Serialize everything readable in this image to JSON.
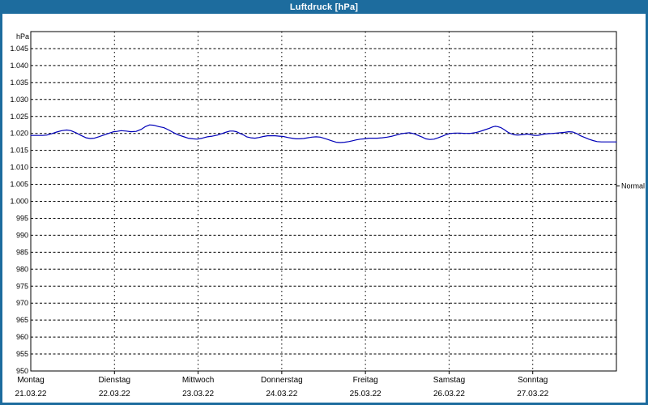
{
  "window": {
    "title": "Luftdruck [hPa]"
  },
  "colors": {
    "frame": "#1d6c9e",
    "title_text": "#ffffff",
    "plot_bg": "#ffffff",
    "grid": "#000000",
    "axis_text": "#000000",
    "line": "#0000b8"
  },
  "chart_data": {
    "type": "line",
    "title": "Luftdruck [hPa]",
    "unit_label": "hPa",
    "grid": "on",
    "ylim": [
      950,
      1050
    ],
    "xlim_days": [
      0,
      7
    ],
    "y_ticks": [
      {
        "value": 1045,
        "label": "1.045"
      },
      {
        "value": 1040,
        "label": "1.040"
      },
      {
        "value": 1035,
        "label": "1.035"
      },
      {
        "value": 1030,
        "label": "1.030"
      },
      {
        "value": 1025,
        "label": "1.025"
      },
      {
        "value": 1020,
        "label": "1.020"
      },
      {
        "value": 1015,
        "label": "1.015"
      },
      {
        "value": 1010,
        "label": "1.010"
      },
      {
        "value": 1005,
        "label": "1.005"
      },
      {
        "value": 1000,
        "label": "1.000"
      },
      {
        "value": 995,
        "label": "995"
      },
      {
        "value": 990,
        "label": "990"
      },
      {
        "value": 985,
        "label": "985"
      },
      {
        "value": 980,
        "label": "980"
      },
      {
        "value": 975,
        "label": "975"
      },
      {
        "value": 970,
        "label": "970"
      },
      {
        "value": 965,
        "label": "965"
      },
      {
        "value": 960,
        "label": "960"
      },
      {
        "value": 955,
        "label": "955"
      },
      {
        "value": 950,
        "label": "950"
      }
    ],
    "days": [
      {
        "name": "Montag",
        "date": "21.03.22"
      },
      {
        "name": "Dienstag",
        "date": "22.03.22"
      },
      {
        "name": "Mittwoch",
        "date": "23.03.22"
      },
      {
        "name": "Donnerstag",
        "date": "24.03.22"
      },
      {
        "name": "Freitag",
        "date": "25.03.22"
      },
      {
        "name": "Samstag",
        "date": "26.03.22"
      },
      {
        "name": "Sonntag",
        "date": "27.03.22"
      }
    ],
    "normal_marker": {
      "label": "Normal",
      "value": 1004.5
    },
    "series": [
      {
        "name": "Luftdruck",
        "color": "#0000b8",
        "points": [
          [
            0.0,
            1019.4
          ],
          [
            0.07,
            1019.4
          ],
          [
            0.14,
            1019.4
          ],
          [
            0.19,
            1019.5
          ],
          [
            0.25,
            1019.9
          ],
          [
            0.31,
            1020.4
          ],
          [
            0.37,
            1020.8
          ],
          [
            0.43,
            1021.0
          ],
          [
            0.48,
            1020.8
          ],
          [
            0.54,
            1020.2
          ],
          [
            0.6,
            1019.4
          ],
          [
            0.66,
            1018.7
          ],
          [
            0.71,
            1018.5
          ],
          [
            0.76,
            1018.6
          ],
          [
            0.81,
            1019.0
          ],
          [
            0.87,
            1019.5
          ],
          [
            0.93,
            1020.0
          ],
          [
            0.99,
            1020.5
          ],
          [
            1.03,
            1020.6
          ],
          [
            1.08,
            1020.8
          ],
          [
            1.14,
            1020.7
          ],
          [
            1.2,
            1020.5
          ],
          [
            1.26,
            1020.6
          ],
          [
            1.32,
            1021.2
          ],
          [
            1.37,
            1022.0
          ],
          [
            1.42,
            1022.5
          ],
          [
            1.47,
            1022.4
          ],
          [
            1.53,
            1022.0
          ],
          [
            1.59,
            1021.7
          ],
          [
            1.65,
            1021.0
          ],
          [
            1.7,
            1020.3
          ],
          [
            1.76,
            1019.6
          ],
          [
            1.82,
            1019.1
          ],
          [
            1.88,
            1018.6
          ],
          [
            1.94,
            1018.4
          ],
          [
            1.99,
            1018.3
          ],
          [
            2.05,
            1018.6
          ],
          [
            2.11,
            1019.0
          ],
          [
            2.17,
            1019.2
          ],
          [
            2.23,
            1019.5
          ],
          [
            2.28,
            1019.9
          ],
          [
            2.34,
            1020.4
          ],
          [
            2.38,
            1020.7
          ],
          [
            2.42,
            1020.7
          ],
          [
            2.46,
            1020.5
          ],
          [
            2.5,
            1020.0
          ],
          [
            2.54,
            1019.6
          ],
          [
            2.58,
            1019.0
          ],
          [
            2.63,
            1018.7
          ],
          [
            2.68,
            1018.6
          ],
          [
            2.73,
            1018.8
          ],
          [
            2.78,
            1019.1
          ],
          [
            2.83,
            1019.3
          ],
          [
            2.88,
            1019.3
          ],
          [
            2.92,
            1019.3
          ],
          [
            2.97,
            1019.2
          ],
          [
            3.02,
            1019.1
          ],
          [
            3.07,
            1018.8
          ],
          [
            3.12,
            1018.6
          ],
          [
            3.17,
            1018.4
          ],
          [
            3.21,
            1018.4
          ],
          [
            3.26,
            1018.5
          ],
          [
            3.31,
            1018.7
          ],
          [
            3.36,
            1018.9
          ],
          [
            3.41,
            1019.0
          ],
          [
            3.46,
            1018.9
          ],
          [
            3.5,
            1018.6
          ],
          [
            3.55,
            1018.2
          ],
          [
            3.6,
            1017.8
          ],
          [
            3.65,
            1017.4
          ],
          [
            3.7,
            1017.3
          ],
          [
            3.75,
            1017.4
          ],
          [
            3.8,
            1017.6
          ],
          [
            3.84,
            1017.8
          ],
          [
            3.89,
            1018.1
          ],
          [
            3.94,
            1018.3
          ],
          [
            3.99,
            1018.4
          ],
          [
            4.04,
            1018.6
          ],
          [
            4.09,
            1018.6
          ],
          [
            4.14,
            1018.6
          ],
          [
            4.2,
            1018.7
          ],
          [
            4.26,
            1018.9
          ],
          [
            4.32,
            1019.2
          ],
          [
            4.38,
            1019.6
          ],
          [
            4.43,
            1019.9
          ],
          [
            4.48,
            1020.1
          ],
          [
            4.53,
            1020.2
          ],
          [
            4.58,
            1019.9
          ],
          [
            4.63,
            1019.4
          ],
          [
            4.68,
            1018.9
          ],
          [
            4.72,
            1018.4
          ],
          [
            4.77,
            1018.2
          ],
          [
            4.82,
            1018.3
          ],
          [
            4.87,
            1018.7
          ],
          [
            4.92,
            1019.2
          ],
          [
            4.97,
            1019.7
          ],
          [
            5.02,
            1020.0
          ],
          [
            5.07,
            1020.1
          ],
          [
            5.13,
            1020.1
          ],
          [
            5.19,
            1020.0
          ],
          [
            5.25,
            1020.0
          ],
          [
            5.31,
            1020.2
          ],
          [
            5.36,
            1020.5
          ],
          [
            5.42,
            1021.0
          ],
          [
            5.48,
            1021.5
          ],
          [
            5.52,
            1021.9
          ],
          [
            5.55,
            1022.1
          ],
          [
            5.58,
            1022.0
          ],
          [
            5.62,
            1021.7
          ],
          [
            5.66,
            1021.1
          ],
          [
            5.7,
            1020.4
          ],
          [
            5.74,
            1019.9
          ],
          [
            5.78,
            1019.6
          ],
          [
            5.82,
            1019.5
          ],
          [
            5.86,
            1019.6
          ],
          [
            5.9,
            1019.7
          ],
          [
            5.94,
            1019.8
          ],
          [
            5.98,
            1019.6
          ],
          [
            6.02,
            1019.4
          ],
          [
            6.06,
            1019.4
          ],
          [
            6.1,
            1019.6
          ],
          [
            6.14,
            1019.8
          ],
          [
            6.18,
            1019.9
          ],
          [
            6.24,
            1020.0
          ],
          [
            6.28,
            1020.1
          ],
          [
            6.33,
            1020.2
          ],
          [
            6.38,
            1020.3
          ],
          [
            6.43,
            1020.5
          ],
          [
            6.48,
            1020.4
          ],
          [
            6.53,
            1019.9
          ],
          [
            6.57,
            1019.3
          ],
          [
            6.62,
            1018.8
          ],
          [
            6.67,
            1018.3
          ],
          [
            6.72,
            1017.9
          ],
          [
            6.77,
            1017.6
          ],
          [
            6.82,
            1017.5
          ],
          [
            6.86,
            1017.5
          ],
          [
            6.91,
            1017.5
          ],
          [
            6.96,
            1017.5
          ],
          [
            7.0,
            1017.5
          ]
        ]
      }
    ]
  }
}
